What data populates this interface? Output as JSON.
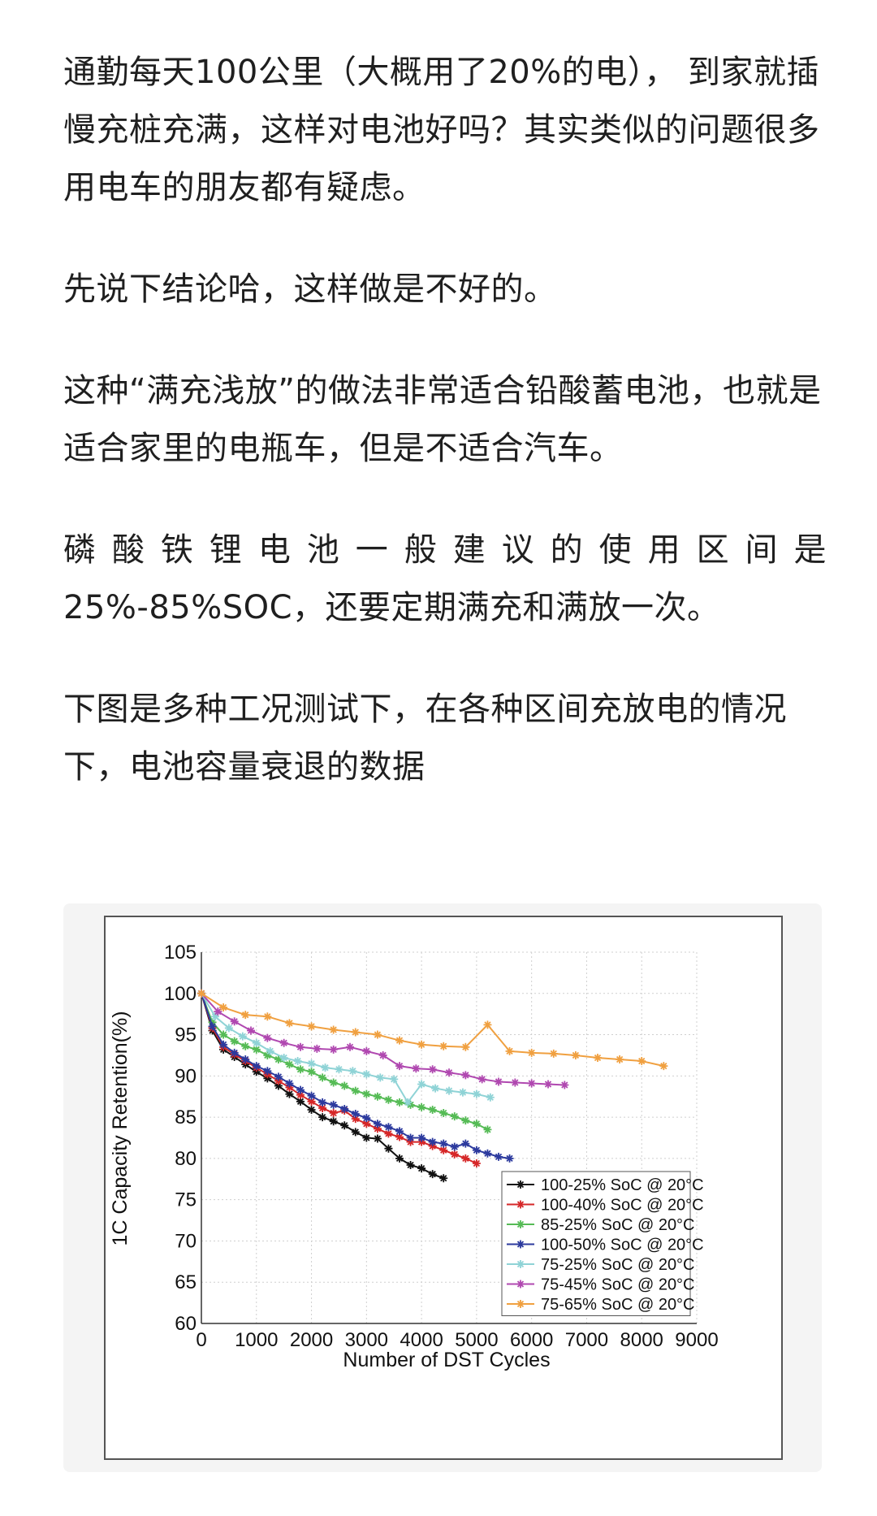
{
  "article": {
    "paragraphs": [
      "通勤每天100公里（大概用了20%的电）， 到家就插慢充桩充满，这样对电池好吗？其实类似的问题很多用电车的朋友都有疑虑。",
      "先说下结论哈，这样做是不好的。",
      "这种“满充浅放”的做法非常适合铅酸蓄电池，也就是适合家里的电瓶车，但是不适合汽车。",
      "磷酸铁锂电池一般建议的使用区间是25%-85%SOC，还要定期满充和满放一次。",
      "下图是多种工况测试下，在各种区间充放电的情况下，电池容量衰退的数据"
    ]
  },
  "chart_data": {
    "type": "line",
    "title": "",
    "xlabel": "Number of DST Cycles",
    "ylabel": "1C Capacity Retention(%)",
    "xlim": [
      0,
      9000
    ],
    "ylim": [
      60,
      105
    ],
    "xticks": [
      "0",
      "1000",
      "2000",
      "3000",
      "4000",
      "5000",
      "6000",
      "7000",
      "8000",
      "9000"
    ],
    "yticks": [
      "60",
      "65",
      "70",
      "75",
      "80",
      "85",
      "90",
      "95",
      "100",
      "105"
    ],
    "grid": true,
    "legend_position": "bottom-right",
    "series": [
      {
        "name": "100-25% SoC @ 20°C",
        "color": "#111111",
        "marker": "star",
        "x": [
          0,
          200,
          400,
          600,
          800,
          1000,
          1200,
          1400,
          1600,
          1800,
          2000,
          2200,
          2400,
          2600,
          2800,
          3000,
          3200,
          3400,
          3600,
          3800,
          4000,
          4200,
          4400
        ],
        "y": [
          100,
          95.5,
          93.2,
          92.3,
          91.4,
          90.5,
          89.7,
          88.8,
          87.8,
          86.9,
          85.9,
          85.0,
          84.5,
          84.0,
          83.2,
          82.5,
          82.4,
          81.2,
          80.0,
          79.2,
          78.8,
          78.1,
          77.6
        ]
      },
      {
        "name": "100-40% SoC @ 20°C",
        "color": "#d62728",
        "marker": "star",
        "x": [
          0,
          200,
          400,
          600,
          800,
          1000,
          1200,
          1400,
          1600,
          1800,
          2000,
          2200,
          2400,
          2600,
          2800,
          3000,
          3200,
          3400,
          3600,
          3800,
          4000,
          4200,
          4400,
          4600,
          4800,
          5000
        ],
        "y": [
          100,
          95.8,
          93.5,
          92.6,
          91.8,
          91.0,
          90.2,
          89.4,
          88.6,
          87.7,
          86.9,
          86.1,
          85.5,
          85.8,
          84.8,
          84.2,
          83.6,
          83.0,
          82.6,
          82.0,
          82.0,
          81.5,
          81.0,
          80.5,
          80.0,
          79.4
        ]
      },
      {
        "name": "85-25% SoC @ 20°C",
        "color": "#55bb55",
        "marker": "star",
        "x": [
          0,
          200,
          400,
          600,
          800,
          1000,
          1200,
          1400,
          1600,
          1800,
          2000,
          2200,
          2400,
          2600,
          2800,
          3000,
          3200,
          3400,
          3600,
          3800,
          4000,
          4200,
          4400,
          4600,
          4800,
          5000,
          5200
        ],
        "y": [
          100,
          96.5,
          95.0,
          94.2,
          93.6,
          93.2,
          92.5,
          92.0,
          91.4,
          90.8,
          90.5,
          89.8,
          89.2,
          88.8,
          88.2,
          87.8,
          87.5,
          87.1,
          86.8,
          86.5,
          86.2,
          85.9,
          85.5,
          85.1,
          84.6,
          84.2,
          83.5
        ]
      },
      {
        "name": "100-50% SoC @ 20°C",
        "color": "#2c3a9e",
        "marker": "star",
        "x": [
          0,
          200,
          400,
          600,
          800,
          1000,
          1200,
          1400,
          1600,
          1800,
          2000,
          2200,
          2400,
          2600,
          2800,
          3000,
          3200,
          3400,
          3600,
          3800,
          4000,
          4200,
          4400,
          4600,
          4800,
          5000,
          5200,
          5400,
          5600
        ],
        "y": [
          100,
          96.0,
          93.8,
          92.8,
          92.0,
          91.2,
          90.6,
          89.9,
          89.1,
          88.3,
          87.6,
          86.8,
          86.5,
          86.0,
          85.4,
          84.9,
          84.2,
          83.8,
          83.3,
          82.5,
          82.5,
          82.0,
          81.8,
          81.4,
          81.8,
          81.0,
          80.6,
          80.2,
          80.0
        ]
      },
      {
        "name": "75-25% SoC @ 20°C",
        "color": "#8fd3d6",
        "marker": "star",
        "x": [
          0,
          250,
          500,
          750,
          1000,
          1250,
          1500,
          1750,
          2000,
          2250,
          2500,
          2750,
          3000,
          3250,
          3500,
          3750,
          4000,
          4250,
          4500,
          4750,
          5000,
          5250
        ],
        "y": [
          100,
          97.2,
          95.8,
          94.8,
          94.0,
          93.0,
          92.2,
          91.8,
          91.5,
          91.0,
          90.8,
          90.6,
          90.2,
          89.8,
          89.6,
          86.8,
          89.0,
          88.5,
          88.2,
          88.0,
          87.8,
          87.4
        ]
      },
      {
        "name": "75-45% SoC @ 20°C",
        "color": "#b048b0",
        "marker": "star",
        "x": [
          0,
          300,
          600,
          900,
          1200,
          1500,
          1800,
          2100,
          2400,
          2700,
          3000,
          3300,
          3600,
          3900,
          4200,
          4500,
          4800,
          5100,
          5400,
          5700,
          6000,
          6300,
          6600
        ],
        "y": [
          100,
          97.8,
          96.6,
          95.5,
          94.6,
          94.0,
          93.5,
          93.3,
          93.2,
          93.5,
          93.0,
          92.5,
          91.2,
          90.9,
          90.8,
          90.4,
          90.1,
          89.6,
          89.3,
          89.2,
          89.1,
          89.0,
          88.9
        ]
      },
      {
        "name": "75-65% SoC @ 20°C",
        "color": "#f0a040",
        "marker": "star",
        "x": [
          0,
          400,
          800,
          1200,
          1600,
          2000,
          2400,
          2800,
          3200,
          3600,
          4000,
          4400,
          4800,
          5200,
          5600,
          6000,
          6400,
          6800,
          7200,
          7600,
          8000,
          8400
        ],
        "y": [
          100,
          98.3,
          97.4,
          97.2,
          96.4,
          96.0,
          95.6,
          95.3,
          95.0,
          94.3,
          93.8,
          93.6,
          93.5,
          96.2,
          93.0,
          92.8,
          92.7,
          92.5,
          92.2,
          92.0,
          91.8,
          91.2
        ]
      }
    ]
  }
}
